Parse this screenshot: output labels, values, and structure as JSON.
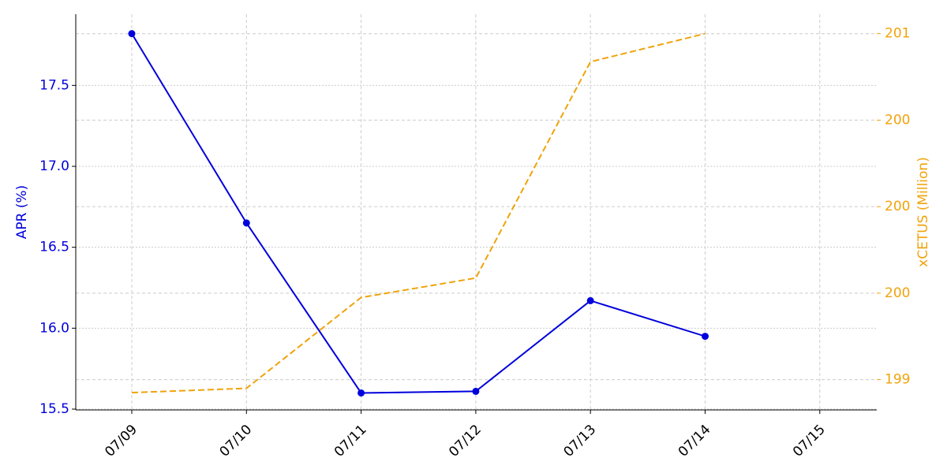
{
  "chart_data": {
    "type": "line",
    "categories": [
      "07/09",
      "07/10",
      "07/11",
      "07/12",
      "07/13",
      "07/14",
      "07/15"
    ],
    "series": [
      {
        "name": "APR (%)",
        "color": "#0000dd",
        "values": [
          17.82,
          16.65,
          15.6,
          15.61,
          16.17,
          15.95,
          null
        ],
        "axis": "y",
        "dash": false,
        "markers": true
      },
      {
        "name": "xCETUS (Million)",
        "color": "#f0a30a",
        "values": [
          199.14,
          199.16,
          199.58,
          199.67,
          200.67,
          200.8,
          null
        ],
        "axis": "y2",
        "dash": true,
        "markers": false
      }
    ],
    "ylabel": "APR (%)",
    "y2label": "xCETUS (Million)",
    "ylim": [
      15.495,
      17.94
    ],
    "yticks": [
      15.5,
      {
        "value": 16,
        "label": "16.0"
      },
      16.5,
      {
        "value": 17,
        "label": "17.0"
      },
      17.5
    ],
    "y2lim": [
      199.06,
      200.89
    ],
    "y2ticks": [
      {
        "value": 199.2,
        "label": "199"
      },
      {
        "value": 199.6,
        "label": "200"
      },
      {
        "value": 200,
        "label": "200"
      },
      {
        "value": 200.4,
        "label": "200"
      },
      {
        "value": 200.8,
        "label": "201"
      }
    ],
    "grid": true
  }
}
